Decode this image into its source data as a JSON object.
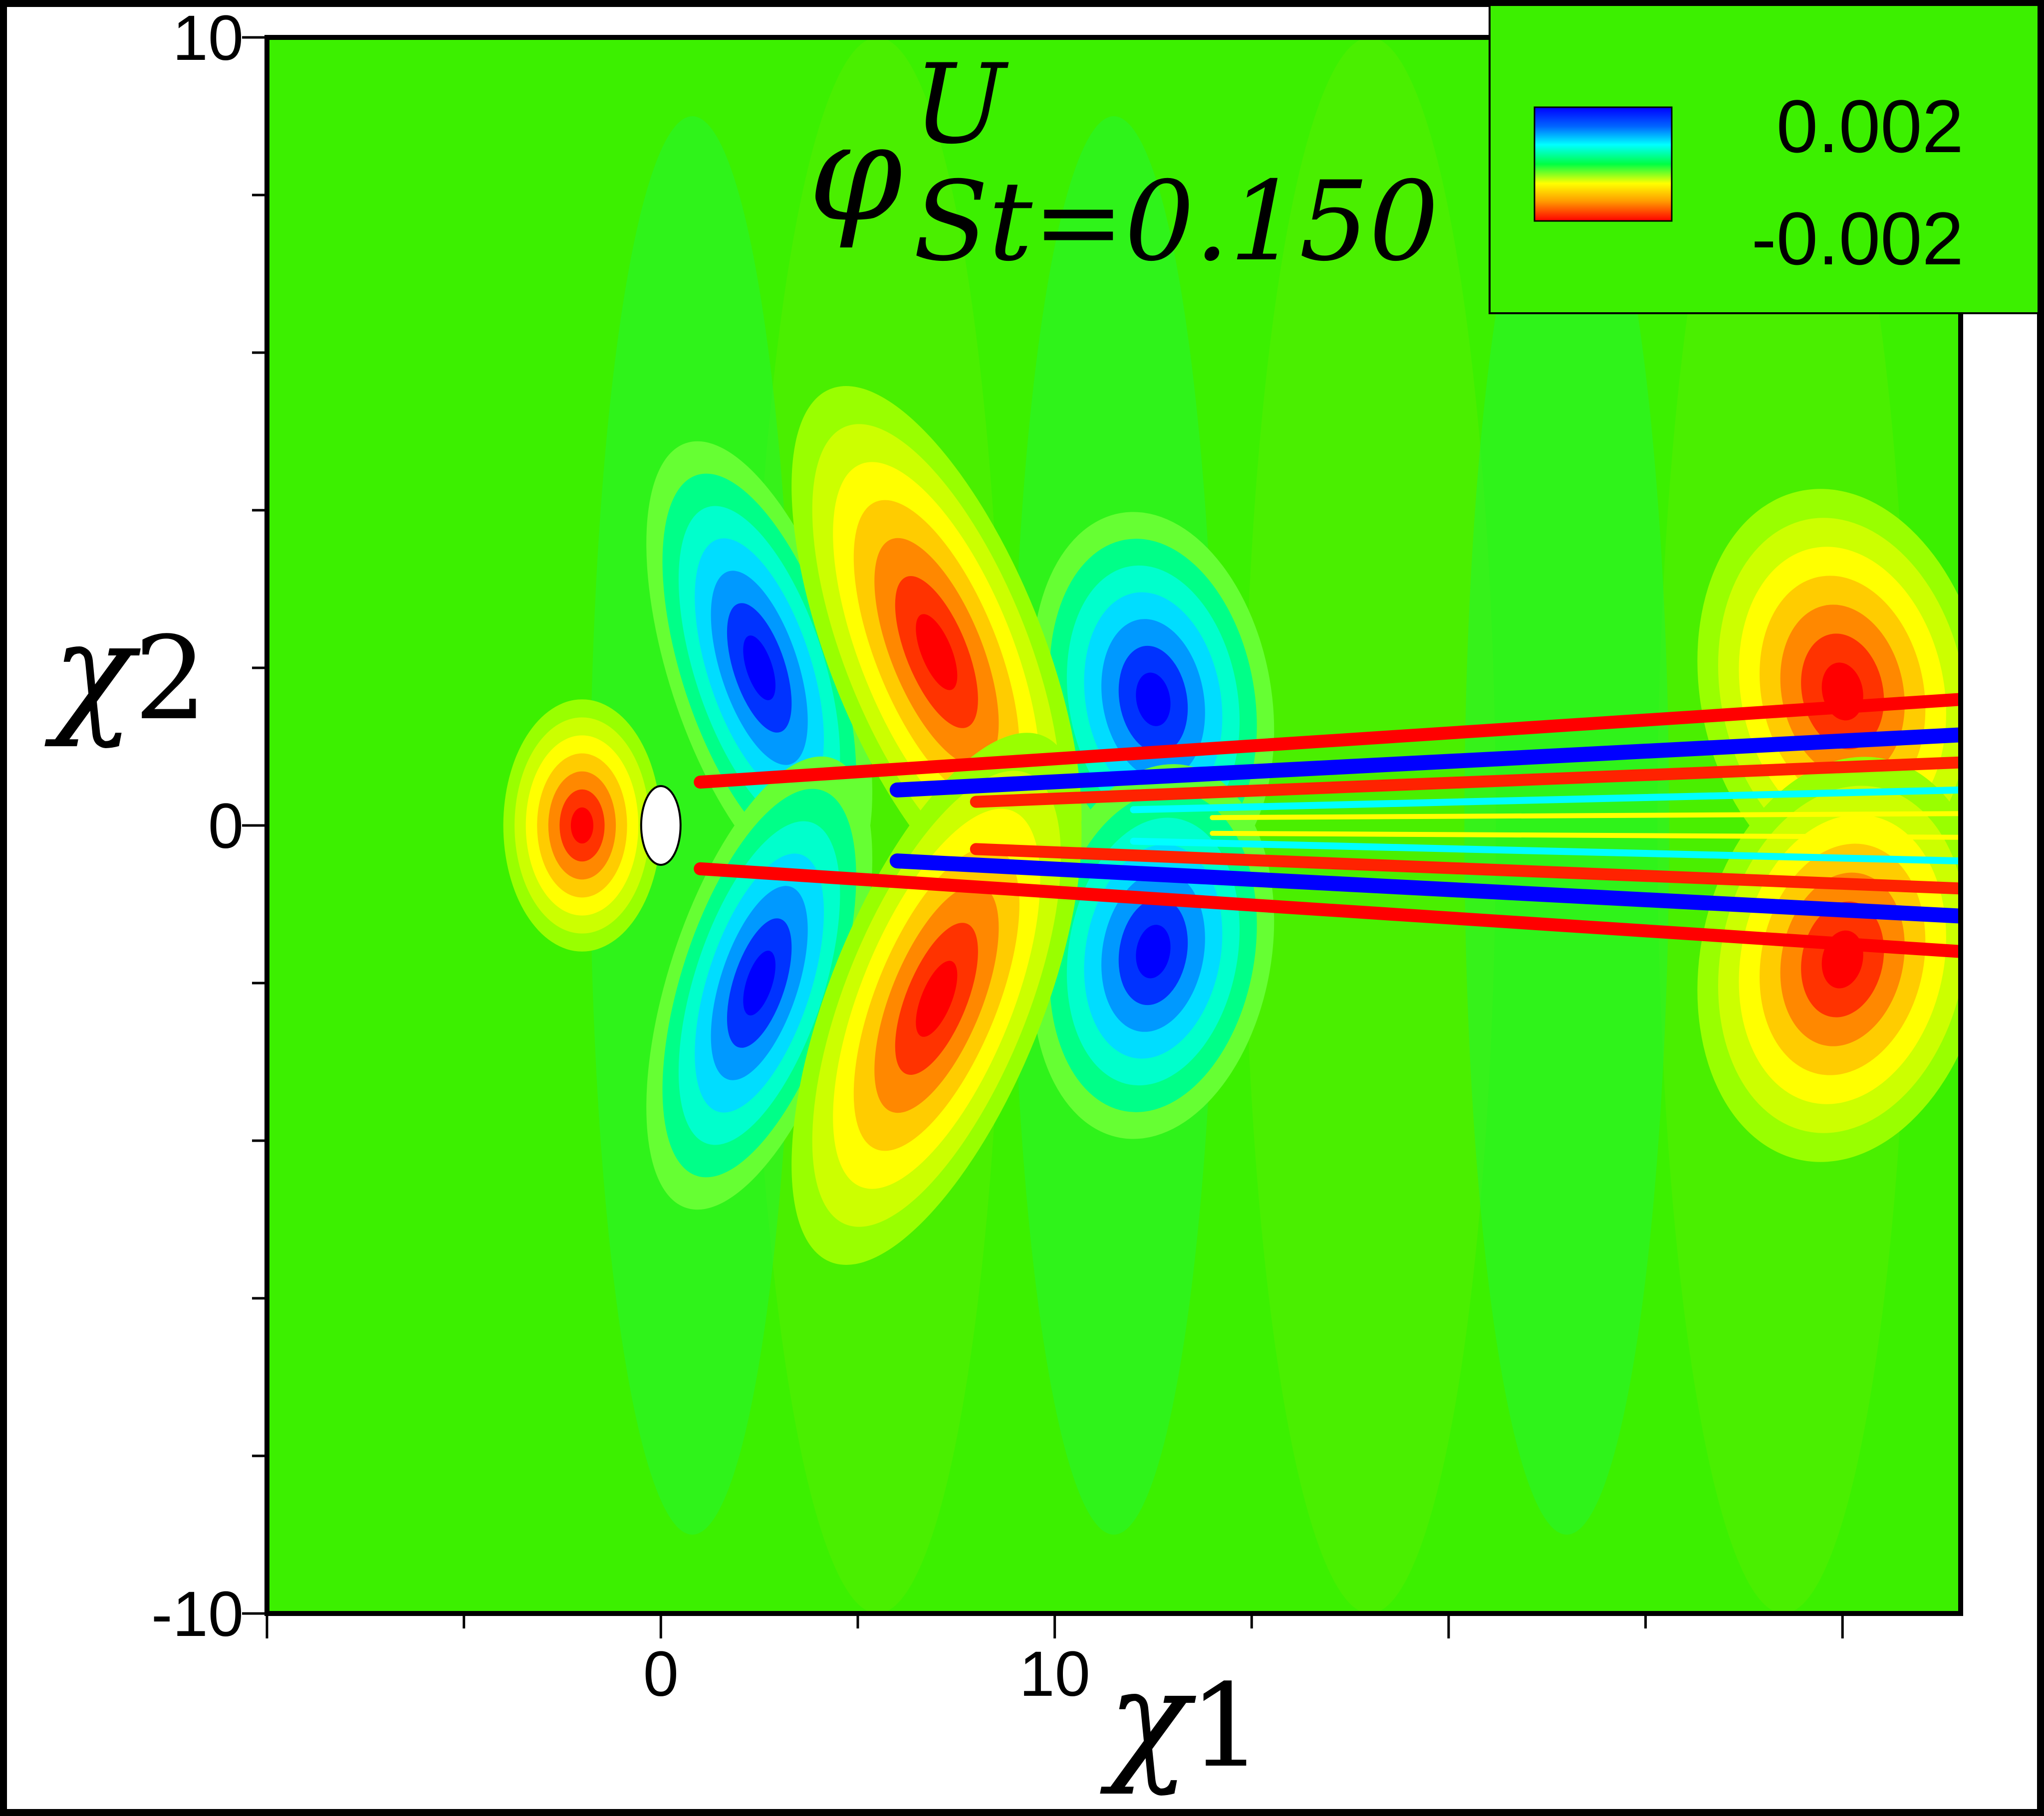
{
  "chart_data": {
    "type": "heatmap",
    "title": {
      "symbol": "φ",
      "superscript": "U",
      "subscript": "St=0.150"
    },
    "xlabel": {
      "symbol": "χ",
      "sub": "1"
    },
    "ylabel": {
      "symbol": "χ",
      "sub": "2"
    },
    "xlim": [
      -10,
      33
    ],
    "ylim": [
      -10,
      10
    ],
    "x_ticks": [
      {
        "value": 0,
        "label": "0"
      },
      {
        "value": 10,
        "label": "10"
      }
    ],
    "y_ticks": [
      {
        "value": -10,
        "label": "-10"
      },
      {
        "value": 0,
        "label": "0"
      },
      {
        "value": 10,
        "label": "10"
      }
    ],
    "x_minor_step": 5,
    "y_minor_step": 2,
    "colorbar": {
      "max_label": "0.002",
      "min_label": "-0.002",
      "max": 0.002,
      "min": -0.002,
      "colormap": "rainbow (blue = max, red = min)"
    },
    "cylinder": {
      "center": [
        0,
        0
      ],
      "radius": 0.5
    },
    "background_value": 0,
    "lobes_upper": [
      {
        "x": 2.5,
        "y": 2.0,
        "sign": "max"
      },
      {
        "x": 12.5,
        "y": 1.6,
        "sign": "max"
      },
      {
        "x": 7.0,
        "y": 2.2,
        "sign": "min"
      },
      {
        "x": 30.0,
        "y": 1.7,
        "sign": "min"
      }
    ],
    "lobes_lower": [
      {
        "x": 2.5,
        "y": -2.0,
        "sign": "max"
      },
      {
        "x": 12.5,
        "y": -1.6,
        "sign": "max"
      },
      {
        "x": 7.0,
        "y": -2.2,
        "sign": "min"
      },
      {
        "x": 30.0,
        "y": -1.7,
        "sign": "min"
      }
    ],
    "upstream_lobe": {
      "x": -2.0,
      "y": 0,
      "sign": "min"
    }
  }
}
